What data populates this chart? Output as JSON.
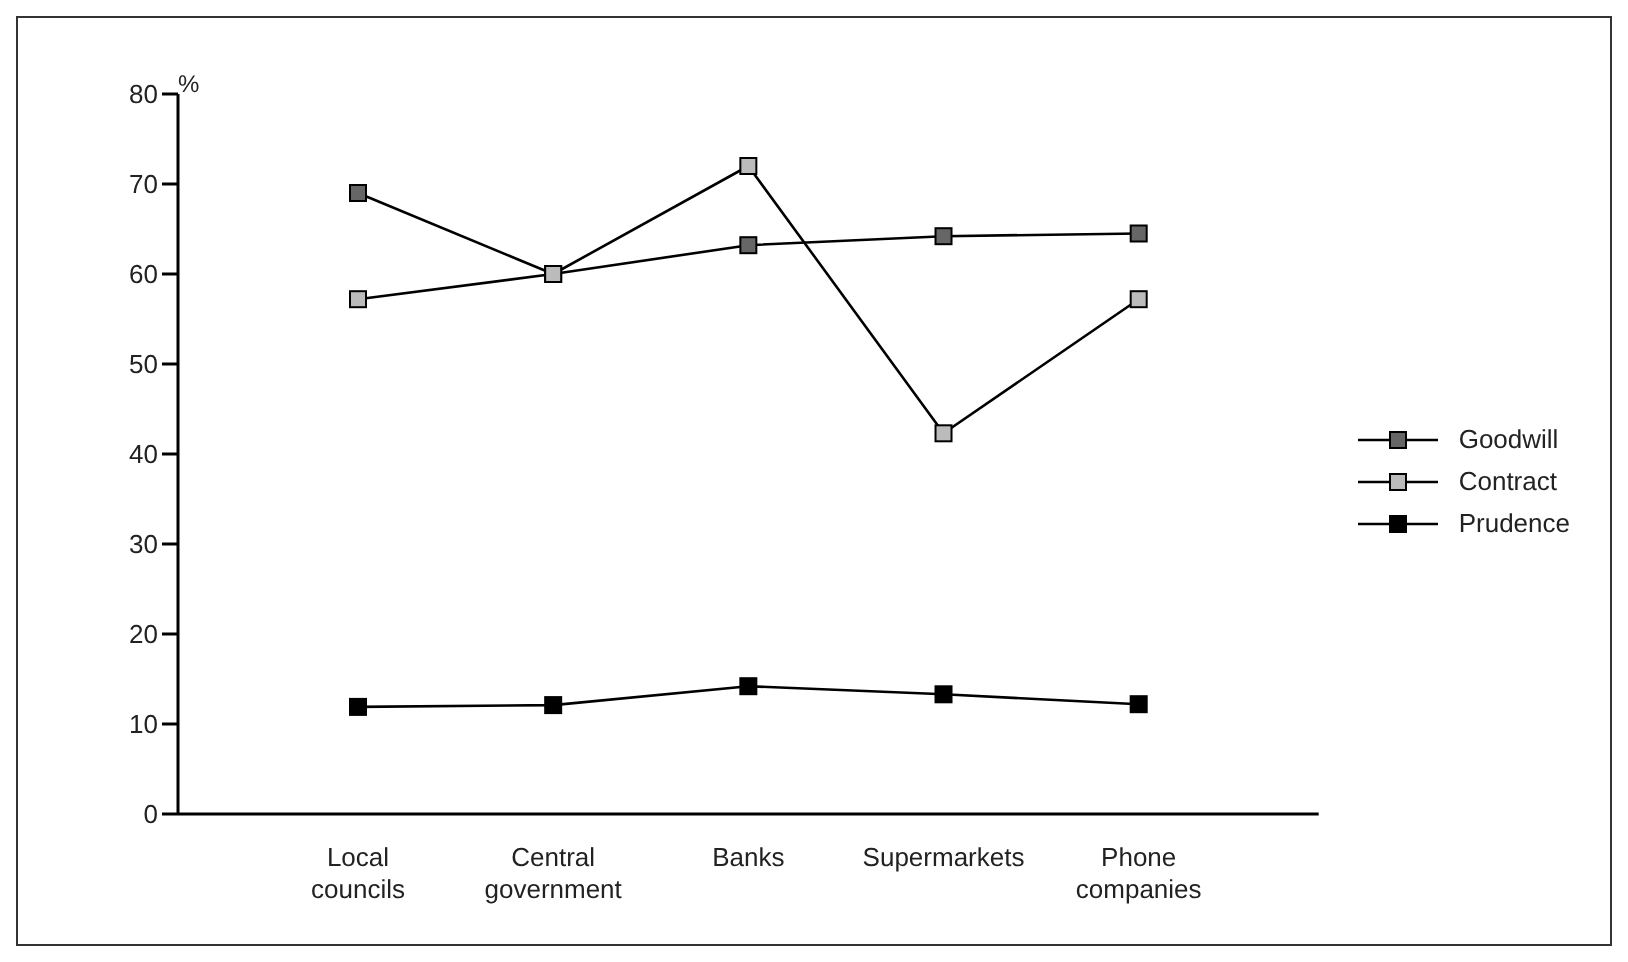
{
  "chart_data": {
    "type": "line",
    "ylabel": "%",
    "categories": [
      "Local councils",
      "Central government",
      "Banks",
      "Supermarkets",
      "Phone companies"
    ],
    "series": [
      {
        "name": "Goodwill",
        "color": "#666666",
        "values": [
          69,
          60,
          63.2,
          64.2,
          64.5
        ]
      },
      {
        "name": "Contract",
        "color": "#bbbbbb",
        "values": [
          57.2,
          60,
          72,
          42.3,
          57.2
        ]
      },
      {
        "name": "Prudence",
        "color": "#000000",
        "values": [
          11.9,
          12.1,
          14.2,
          13.3,
          12.2
        ]
      }
    ],
    "ylim": [
      0,
      80
    ],
    "yticks": [
      0,
      10,
      20,
      30,
      40,
      50,
      60,
      70,
      80
    ],
    "grid": false,
    "legend": "right",
    "marker": "square",
    "line_style": "solid"
  }
}
